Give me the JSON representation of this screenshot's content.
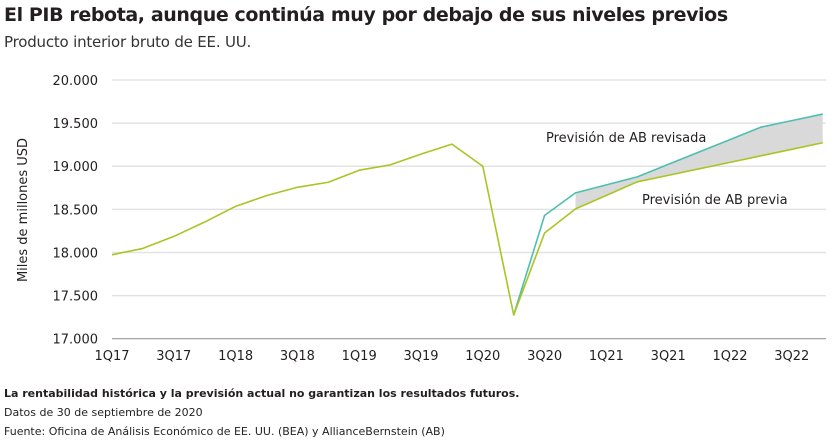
{
  "chart_data": {
    "type": "line",
    "title": "El PIB rebota, aunque continúa muy por debajo de sus niveles previos",
    "subtitle": "Producto interior bruto de EE. UU.",
    "ylabel": "Miles de millones USD",
    "xlabel": "",
    "ylim": [
      17000,
      20000
    ],
    "yticks": [
      17000,
      17500,
      18000,
      18500,
      19000,
      19500,
      20000
    ],
    "ytick_labels": [
      "17.000",
      "17.500",
      "18.000",
      "18.500",
      "19.000",
      "19.500",
      "20.000"
    ],
    "grid": true,
    "x": [
      "1Q17",
      "2Q17",
      "3Q17",
      "4Q17",
      "1Q18",
      "2Q18",
      "3Q18",
      "4Q18",
      "1Q19",
      "2Q19",
      "3Q19",
      "4Q19",
      "1Q20",
      "2Q20",
      "3Q20",
      "4Q20",
      "1Q21",
      "2Q21",
      "3Q21",
      "4Q21",
      "1Q22",
      "2Q22",
      "3Q22",
      "4Q22"
    ],
    "xtick_labels": [
      "1Q17",
      "3Q17",
      "1Q18",
      "3Q18",
      "1Q19",
      "3Q19",
      "1Q20",
      "3Q20",
      "1Q21",
      "3Q21",
      "1Q22",
      "3Q22"
    ],
    "series": [
      {
        "name": "Previsión de AB previa",
        "color": "#a8c523",
        "values": [
          17973,
          18047,
          18186,
          18353,
          18535,
          18659,
          18756,
          18814,
          18954,
          19016,
          19140,
          19256,
          19000,
          17275,
          18226,
          18505,
          18662,
          18819,
          18894,
          18970,
          19045,
          19121,
          19196,
          19272
        ]
      },
      {
        "name": "Previsión de AB revisada",
        "color": "#4dbfb0",
        "values": [
          null,
          null,
          null,
          null,
          null,
          null,
          null,
          null,
          null,
          null,
          null,
          null,
          null,
          17275,
          18430,
          18691,
          18784,
          18877,
          19021,
          19165,
          19309,
          19453,
          19529,
          19605
        ]
      }
    ],
    "shaded_area_color": "#d9d9d9"
  },
  "footer": {
    "disclaimer": "La rentabilidad histórica y la previsión actual no garantizan los resultados futuros.",
    "date": "Datos de 30 de septiembre de 2020",
    "source": "Fuente: Oficina de Análisis Económico de EE. UU. (BEA) y AllianceBernstein (AB)"
  }
}
